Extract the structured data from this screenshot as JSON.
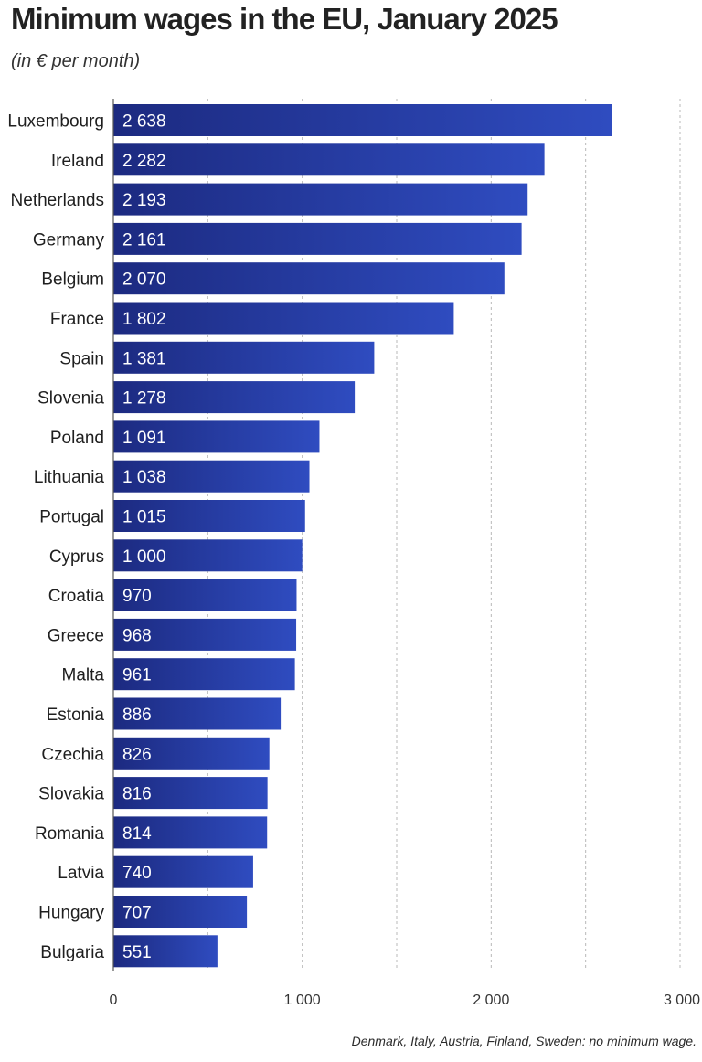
{
  "chart_data": {
    "type": "bar",
    "orientation": "horizontal",
    "title": "Minimum wages in the EU, January 2025",
    "subtitle": "(in € per month)",
    "categories": [
      "Luxembourg",
      "Ireland",
      "Netherlands",
      "Germany",
      "Belgium",
      "France",
      "Spain",
      "Slovenia",
      "Poland",
      "Lithuania",
      "Portugal",
      "Cyprus",
      "Croatia",
      "Greece",
      "Malta",
      "Estonia",
      "Czechia",
      "Slovakia",
      "Romania",
      "Latvia",
      "Hungary",
      "Bulgaria"
    ],
    "values": [
      2638,
      2282,
      2193,
      2161,
      2070,
      1802,
      1381,
      1278,
      1091,
      1038,
      1015,
      1000,
      970,
      968,
      961,
      886,
      826,
      816,
      814,
      740,
      707,
      551
    ],
    "data_labels": [
      "2 638",
      "2 282",
      "2 193",
      "2 161",
      "2 070",
      "1 802",
      "1 381",
      "1 278",
      "1 091",
      "1 038",
      "1 015",
      "1 000",
      "970",
      "968",
      "961",
      "886",
      "826",
      "816",
      "814",
      "740",
      "707",
      "551"
    ],
    "x_ticks": [
      0,
      1000,
      2000,
      3000
    ],
    "x_tick_labels": [
      "0",
      "1 000",
      "2 000",
      "3 000"
    ],
    "xlim": [
      0,
      3000
    ],
    "grid": "vertical dashed",
    "bar_color_start": "#1c2a80",
    "bar_color_end": "#2f4cc0",
    "footnote": "Denmark, Italy, Austria, Finland, Sweden: no minimum wage."
  }
}
